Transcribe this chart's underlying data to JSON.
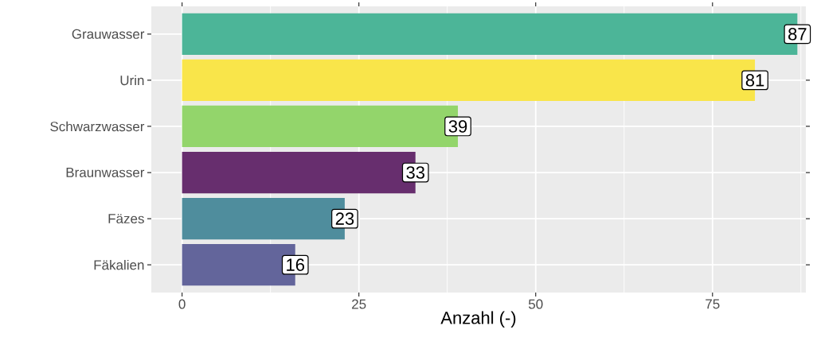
{
  "chart_data": {
    "type": "bar",
    "orientation": "horizontal",
    "xlabel": "Anzahl (-)",
    "categories": [
      "Grauwasser",
      "Urin",
      "Schwarzwasser",
      "Braunwasser",
      "Fäzes",
      "Fäkalien"
    ],
    "values": [
      87,
      81,
      39,
      33,
      23,
      16
    ],
    "colors": [
      "#4cb598",
      "#f9e54a",
      "#93d56b",
      "#672e6e",
      "#4f8d9d",
      "#63659b"
    ],
    "xlim": [
      -4.35,
      88.2
    ],
    "xticks": [
      0,
      25,
      50,
      75
    ],
    "grid": true,
    "data_labels": true
  }
}
